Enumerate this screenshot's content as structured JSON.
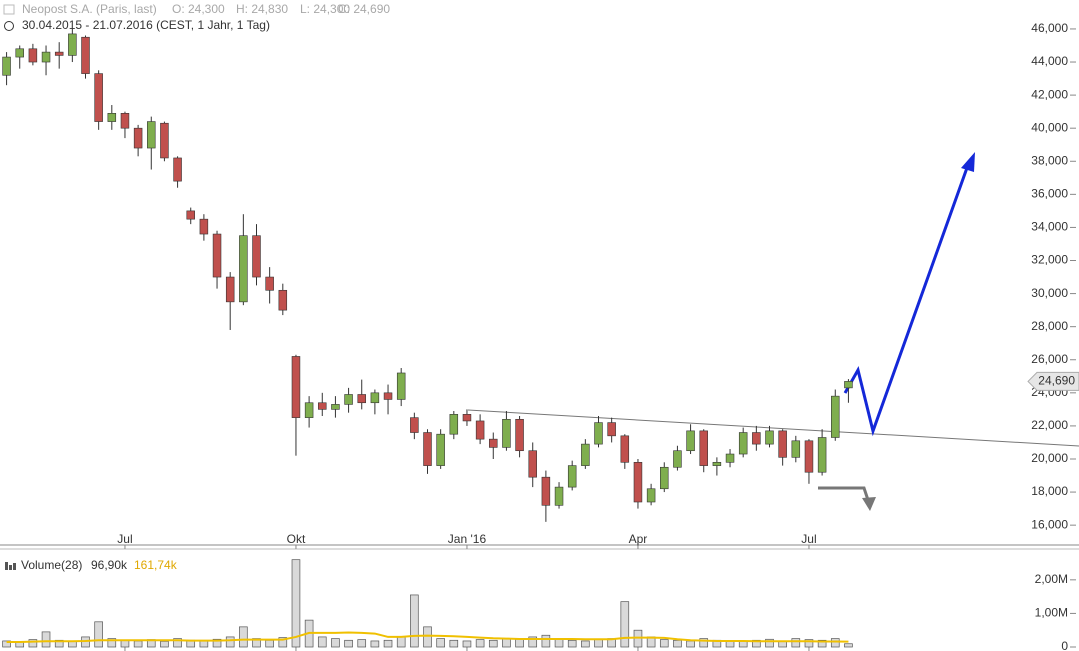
{
  "header": {
    "instrument": "Neopost S.A. (Paris, last)",
    "ohlc": [
      "O: 24,300",
      "H: 24,830",
      "L: 24,300",
      "C: 24,690"
    ],
    "range": "30.04.2015 - 21.07.2016 (CEST, 1 Jahr, 1 Tag)"
  },
  "chart_data": [
    {
      "type": "candlestick",
      "categories": [
        null,
        null,
        null,
        null,
        null,
        null,
        null,
        null,
        null,
        "Jul",
        null,
        null,
        null,
        null,
        null,
        null,
        null,
        null,
        null,
        null,
        null,
        null,
        "Okt",
        null,
        null,
        null,
        null,
        null,
        null,
        null,
        null,
        null,
        null,
        null,
        null,
        "Jan '16",
        null,
        null,
        null,
        null,
        null,
        null,
        null,
        null,
        null,
        null,
        null,
        null,
        "Apr",
        null,
        null,
        null,
        null,
        null,
        null,
        null,
        null,
        null,
        null,
        null,
        null,
        "Jul",
        null,
        null,
        null
      ],
      "open": [
        43200,
        44300,
        44800,
        44000,
        44600,
        44400,
        45500,
        43300,
        40400,
        40900,
        40000,
        38800,
        40300,
        38200,
        35000,
        34500,
        33600,
        31000,
        29500,
        33500,
        31000,
        30200,
        26200,
        22500,
        23400,
        23000,
        23300,
        23900,
        23400,
        24000,
        23600,
        22500,
        21600,
        19600,
        21500,
        22700,
        22300,
        21200,
        20700,
        22400,
        20500,
        18900,
        17200,
        18300,
        19600,
        20900,
        22200,
        21400,
        19800,
        17400,
        18200,
        19500,
        20500,
        21700,
        19600,
        19800,
        20300,
        21600,
        20900,
        21700,
        20100,
        21100,
        19200,
        21300,
        24300
      ],
      "high": [
        44600,
        45000,
        45100,
        45000,
        45200,
        46000,
        45600,
        43500,
        41400,
        41000,
        40200,
        40700,
        40400,
        38300,
        35200,
        34800,
        33800,
        31300,
        34800,
        34200,
        31600,
        30600,
        26300,
        23800,
        24000,
        23800,
        24300,
        24800,
        24200,
        24500,
        25500,
        22800,
        21800,
        21800,
        22900,
        23000,
        22700,
        21600,
        22900,
        22600,
        21000,
        19300,
        18600,
        19900,
        21200,
        22600,
        22500,
        21500,
        20000,
        18500,
        19800,
        20800,
        22100,
        21800,
        20100,
        20600,
        21900,
        22000,
        22000,
        21800,
        21400,
        21200,
        21800,
        24200,
        24830
      ],
      "low": [
        42600,
        43600,
        43800,
        43200,
        43600,
        44000,
        43000,
        39900,
        39900,
        39400,
        38300,
        37500,
        38000,
        36400,
        34200,
        33200,
        30300,
        27800,
        29300,
        30500,
        29400,
        28700,
        20200,
        21900,
        22600,
        22500,
        22800,
        23000,
        22700,
        22700,
        23200,
        21200,
        19100,
        19400,
        21200,
        22000,
        20900,
        20000,
        20500,
        20100,
        18300,
        16200,
        17000,
        18100,
        19400,
        20700,
        21000,
        19400,
        17000,
        17200,
        18000,
        19300,
        20300,
        19200,
        19000,
        19500,
        20100,
        20500,
        20700,
        19600,
        19800,
        18500,
        19000,
        21100,
        23400
      ],
      "close": [
        44300,
        44800,
        44000,
        44600,
        44400,
        45700,
        43300,
        40400,
        40900,
        40000,
        38800,
        40400,
        38200,
        36800,
        34500,
        33600,
        31000,
        29500,
        33500,
        31000,
        30200,
        29000,
        22500,
        23400,
        23000,
        23300,
        23900,
        23400,
        24000,
        23600,
        25200,
        21600,
        19600,
        21500,
        22700,
        22300,
        21200,
        20700,
        22400,
        20500,
        18900,
        17200,
        18300,
        19600,
        20900,
        22200,
        21400,
        19800,
        17400,
        18200,
        19500,
        20500,
        21700,
        19600,
        19800,
        20300,
        21600,
        20900,
        21700,
        20100,
        21100,
        19200,
        21300,
        23800,
        24690
      ],
      "up_color": "#7fae4e",
      "down_color": "#c0504d",
      "ylim": [
        14800,
        47750
      ],
      "yticks": [
        {
          "value": 16000,
          "label": "16,000"
        },
        {
          "value": 18000,
          "label": "18,000"
        },
        {
          "value": 20000,
          "label": "20,000"
        },
        {
          "value": 22000,
          "label": "22,000"
        },
        {
          "value": 24000,
          "label": "24,000"
        },
        {
          "value": 26000,
          "label": "26,000"
        },
        {
          "value": 28000,
          "label": "28,000"
        },
        {
          "value": 30000,
          "label": "30,000"
        },
        {
          "value": 32000,
          "label": "32,000"
        },
        {
          "value": 34000,
          "label": "34,000"
        },
        {
          "value": 36000,
          "label": "36,000"
        },
        {
          "value": 38000,
          "label": "38,000"
        },
        {
          "value": 40000,
          "label": "40,000"
        },
        {
          "value": 42000,
          "label": "42,000"
        },
        {
          "value": 44000,
          "label": "44,000"
        },
        {
          "value": 46000,
          "label": "46,000"
        }
      ],
      "last_price": {
        "value": 24690,
        "label": "24,690"
      }
    },
    {
      "type": "bar",
      "title": "Volume(28)",
      "current_label": "96,90k",
      "average_label": "161,74k",
      "values": [
        180000,
        150000,
        220000,
        450000,
        200000,
        170000,
        300000,
        750000,
        250000,
        200000,
        180000,
        220000,
        170000,
        250000,
        200000,
        180000,
        230000,
        300000,
        600000,
        250000,
        200000,
        280000,
        2600000,
        800000,
        300000,
        250000,
        200000,
        220000,
        180000,
        200000,
        300000,
        1550000,
        600000,
        250000,
        200000,
        180000,
        220000,
        200000,
        250000,
        230000,
        300000,
        350000,
        250000,
        200000,
        180000,
        220000,
        250000,
        1350000,
        500000,
        300000,
        220000,
        200000,
        180000,
        250000,
        200000,
        180000,
        170000,
        200000,
        230000,
        180000,
        250000,
        220000,
        200000,
        250000,
        96900
      ],
      "average": [
        150000,
        150000,
        160000,
        170000,
        170000,
        170000,
        180000,
        200000,
        200000,
        200000,
        200000,
        200000,
        200000,
        200000,
        190000,
        190000,
        190000,
        200000,
        220000,
        220000,
        220000,
        220000,
        300000,
        420000,
        420000,
        420000,
        430000,
        420000,
        400000,
        300000,
        300000,
        330000,
        340000,
        330000,
        320000,
        300000,
        280000,
        260000,
        250000,
        240000,
        240000,
        240000,
        240000,
        240000,
        230000,
        230000,
        230000,
        270000,
        280000,
        280000,
        270000,
        230000,
        200000,
        190000,
        180000,
        180000,
        180000,
        170000,
        170000,
        170000,
        170000,
        170000,
        165000,
        162000,
        161740
      ],
      "color": "#d9d9d9",
      "average_color": "#f0c000",
      "ylim": [
        0,
        2650000
      ],
      "yticks": [
        0,
        {
          "value": 1000000,
          "label": "1,00M"
        },
        {
          "value": 2000000,
          "label": "2,00M"
        }
      ]
    }
  ]
}
